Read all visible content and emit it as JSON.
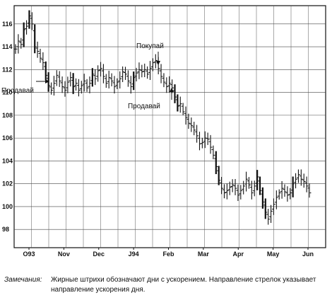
{
  "chart_data": {
    "type": "bar",
    "subtype": "ohlc",
    "title": "",
    "xlabel": "",
    "ylabel": "",
    "ylim": [
      96.4,
      117.6
    ],
    "y_ticks": [
      98,
      100,
      102,
      104,
      106,
      108,
      110,
      112,
      114,
      116
    ],
    "x_ticks": [
      "O93",
      "Nov",
      "Dec",
      "J94",
      "Feb",
      "Mar",
      "Apr",
      "May",
      "Jun"
    ],
    "grid": true,
    "series": [
      {
        "bars": [
          113.8,
          114.5,
          114.2,
          115.5,
          115.8,
          116.7,
          116.0,
          114.0,
          113.6,
          113.0,
          112.6,
          111.5,
          110.6,
          110.2,
          110.8,
          111.5,
          111.0,
          110.5,
          110.2,
          110.9,
          111.3,
          110.5,
          110.8,
          110.2,
          110.6,
          111.0,
          110.4,
          110.8,
          111.6,
          111.2,
          111.9,
          112.1,
          111.4,
          110.8,
          111.3,
          111.0,
          110.5,
          110.9,
          111.2,
          111.8,
          111.6,
          111.0,
          110.5,
          111.3,
          111.7,
          112.0,
          111.8,
          112.0,
          111.6,
          112.1,
          112.6,
          112.8,
          112.1,
          111.4,
          110.9,
          110.5,
          110.8,
          110.4,
          109.6,
          108.8,
          109.0,
          108.3,
          107.8,
          107.3,
          107.1,
          106.7,
          106.2,
          105.5,
          105.6,
          106.0,
          105.9,
          105.2,
          104.5,
          103.5,
          102.3,
          101.6,
          101.2,
          101.4,
          101.7,
          101.9,
          101.6,
          101.0,
          101.4,
          101.8,
          102.4,
          101.9,
          101.2,
          101.8,
          102.6,
          101.4,
          100.4,
          99.5,
          98.9,
          99.6,
          100.2,
          100.8,
          101.2,
          101.6,
          101.3,
          101.0,
          101.2,
          102.0,
          102.4,
          102.8,
          102.4,
          102.2,
          101.8,
          101.2
        ]
      }
    ],
    "annotations": [
      {
        "label": "Покупай",
        "arrow": "down"
      },
      {
        "label": "Продавай",
        "arrow": "right"
      },
      {
        "label": "Продавай",
        "arrow": "up"
      }
    ]
  },
  "notes": {
    "label": "Замечания:",
    "text": "Жирные штрихи обозначают дни с ускорением. Направление стрелок указывает направление ускорения дня."
  }
}
